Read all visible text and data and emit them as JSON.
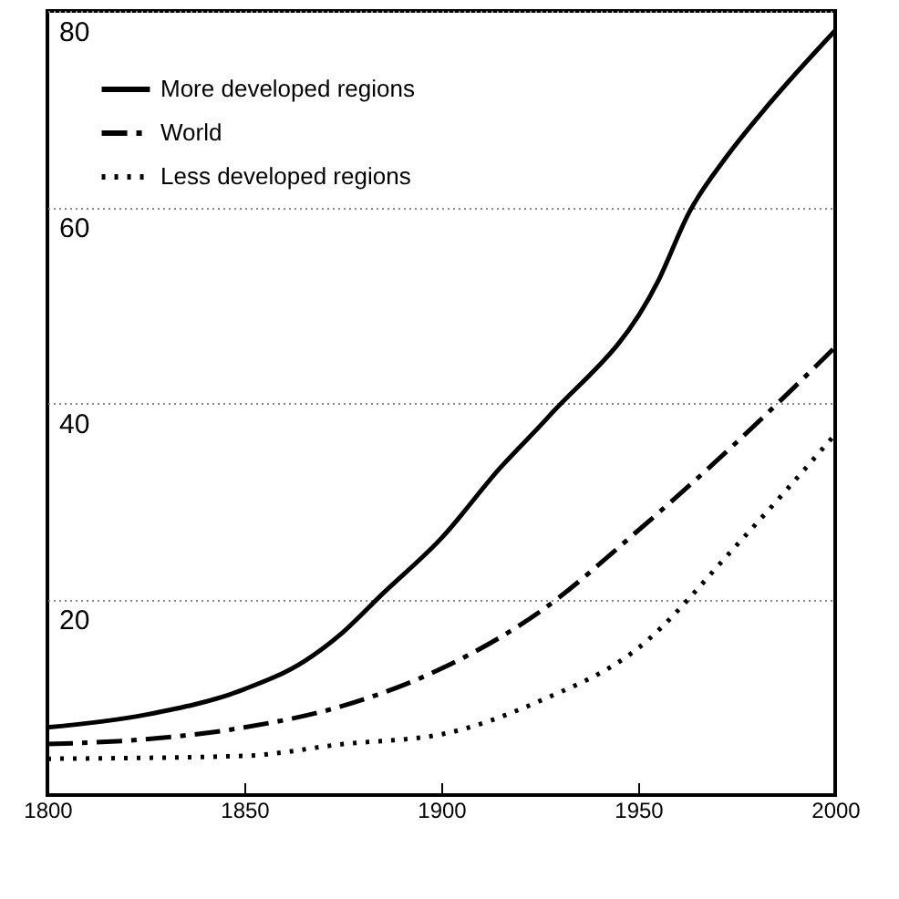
{
  "chart_data": {
    "type": "line",
    "x": [
      1800,
      1825,
      1850,
      1865,
      1875,
      1885,
      1900,
      1915,
      1927,
      1955,
      1963,
      1972,
      1983,
      2000
    ],
    "series": [
      {
        "name": "More developed regions",
        "color": "#000000",
        "line_style": "solid",
        "values": [
          6.9,
          8.2,
          10.8,
          13.6,
          16.6,
          20.5,
          26.2,
          33.4,
          38.5,
          52.4,
          59.5,
          64.9,
          70.4,
          78
        ]
      },
      {
        "name": "World",
        "color": "#000000",
        "line_style": "dashed",
        "x": [
          1800,
          1825,
          1850,
          1875,
          1900,
          1925,
          1950,
          1975,
          2000
        ],
        "values": [
          5.2,
          5.7,
          6.9,
          9.1,
          12.9,
          18.7,
          27,
          36,
          45.7
        ]
      },
      {
        "name": "Less developed regions",
        "color": "#000000",
        "line_style": "dotted",
        "x": [
          1800,
          1850,
          1875,
          1900,
          1925,
          1950,
          1975,
          2000
        ],
        "values": [
          3.7,
          4.0,
          5.2,
          6.2,
          9.6,
          15,
          25.5,
          36.8
        ]
      }
    ],
    "xlim": [
      1800,
      2000
    ],
    "xticks": [
      1800,
      1850,
      1900,
      1950,
      2000
    ],
    "ylim": [
      0,
      80
    ],
    "yticks": [
      20,
      40,
      60,
      80
    ],
    "grid": "y",
    "legend": "top left",
    "marker": "none"
  }
}
